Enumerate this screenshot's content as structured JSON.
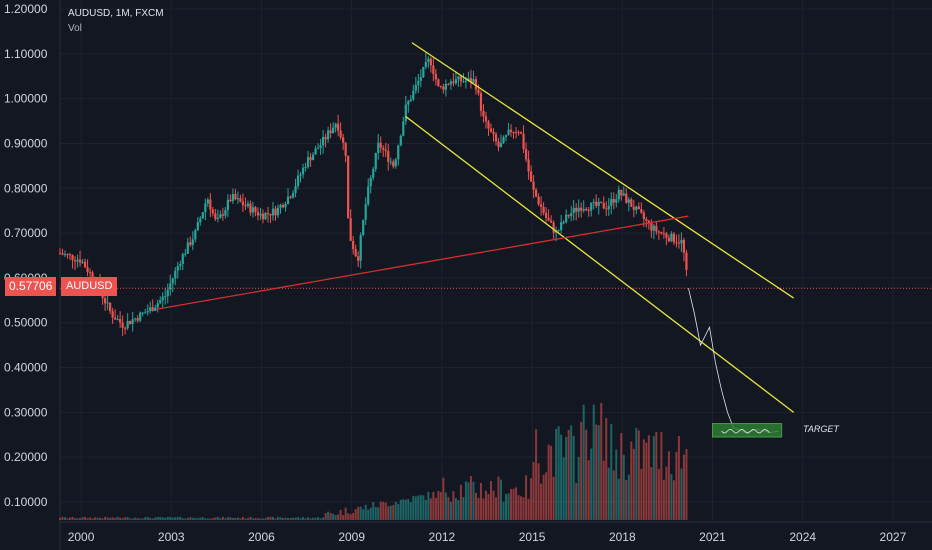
{
  "header": {
    "symbol": "AUDUSD, 1M, FXCM",
    "indicator": "Vol"
  },
  "last_price": {
    "value": "0.57706",
    "label": "AUDUSD"
  },
  "target_label": "TARGET",
  "colors": {
    "background": "#131722",
    "grid": "#1e222d",
    "up": "#26a69a",
    "down": "#ef5350",
    "channel": "#e8e83a",
    "trendline": "#d32f2f",
    "target_box": "#2e7d32",
    "axis_text": "#d1d4dc"
  },
  "chart_data": {
    "type": "candlestick",
    "title": "AUDUSD, 1M, FXCM",
    "y_ticks": [
      "1.20000",
      "1.10000",
      "1.00000",
      "0.90000",
      "0.80000",
      "0.70000",
      "0.60000",
      "0.50000",
      "0.40000",
      "0.30000",
      "0.20000",
      "0.10000"
    ],
    "x_ticks": [
      "2000",
      "2003",
      "2006",
      "2009",
      "2012",
      "2015",
      "2018",
      "2021",
      "2024",
      "2027"
    ],
    "ylim": [
      0.05,
      1.2
    ],
    "xlim": [
      1999.3,
      2028.3
    ],
    "price_path": [
      [
        1999.3,
        0.655
      ],
      [
        2000.0,
        0.64
      ],
      [
        2000.5,
        0.59
      ],
      [
        2001.0,
        0.52
      ],
      [
        2001.4,
        0.495
      ],
      [
        2001.8,
        0.51
      ],
      [
        2002.3,
        0.53
      ],
      [
        2002.8,
        0.56
      ],
      [
        2003.3,
        0.64
      ],
      [
        2003.8,
        0.7
      ],
      [
        2004.2,
        0.78
      ],
      [
        2004.5,
        0.72
      ],
      [
        2005.0,
        0.78
      ],
      [
        2005.5,
        0.76
      ],
      [
        2006.0,
        0.74
      ],
      [
        2006.5,
        0.75
      ],
      [
        2007.0,
        0.79
      ],
      [
        2007.5,
        0.86
      ],
      [
        2008.0,
        0.9
      ],
      [
        2008.5,
        0.95
      ],
      [
        2008.8,
        0.88
      ],
      [
        2008.9,
        0.7
      ],
      [
        2009.2,
        0.64
      ],
      [
        2009.5,
        0.78
      ],
      [
        2009.9,
        0.9
      ],
      [
        2010.4,
        0.85
      ],
      [
        2010.8,
        0.98
      ],
      [
        2011.3,
        1.05
      ],
      [
        2011.6,
        1.09
      ],
      [
        2011.9,
        1.02
      ],
      [
        2012.3,
        1.04
      ],
      [
        2012.8,
        1.04
      ],
      [
        2013.1,
        1.04
      ],
      [
        2013.4,
        0.95
      ],
      [
        2013.9,
        0.89
      ],
      [
        2014.3,
        0.93
      ],
      [
        2014.6,
        0.93
      ],
      [
        2015.0,
        0.8
      ],
      [
        2015.5,
        0.73
      ],
      [
        2015.8,
        0.7
      ],
      [
        2016.2,
        0.74
      ],
      [
        2016.6,
        0.76
      ],
      [
        2017.0,
        0.76
      ],
      [
        2017.5,
        0.76
      ],
      [
        2017.9,
        0.79
      ],
      [
        2018.2,
        0.77
      ],
      [
        2018.6,
        0.74
      ],
      [
        2019.0,
        0.71
      ],
      [
        2019.6,
        0.69
      ],
      [
        2020.0,
        0.68
      ],
      [
        2020.15,
        0.6
      ],
      [
        2020.2,
        0.577
      ]
    ],
    "projection_path": [
      [
        2020.2,
        0.577
      ],
      [
        2020.4,
        0.52
      ],
      [
        2020.6,
        0.45
      ],
      [
        2020.9,
        0.49
      ],
      [
        2021.1,
        0.41
      ],
      [
        2021.3,
        0.35
      ],
      [
        2021.5,
        0.3
      ],
      [
        2021.7,
        0.265
      ],
      [
        2022.1,
        0.255
      ],
      [
        2022.5,
        0.262
      ],
      [
        2022.9,
        0.255
      ],
      [
        2023.2,
        0.258
      ]
    ],
    "trendlines": [
      {
        "kind": "channel-upper",
        "from": [
          2011.0,
          1.125
        ],
        "to": [
          2023.7,
          0.555
        ]
      },
      {
        "kind": "channel-lower",
        "from": [
          2010.8,
          0.96
        ],
        "to": [
          2023.7,
          0.3
        ]
      },
      {
        "kind": "support",
        "from": [
          2002.5,
          0.53
        ],
        "to": [
          2020.2,
          0.738
        ]
      }
    ],
    "horizontal_line": 0.577,
    "target_zone": {
      "x": [
        2021.0,
        2023.3
      ],
      "y": [
        0.245,
        0.275
      ]
    }
  }
}
